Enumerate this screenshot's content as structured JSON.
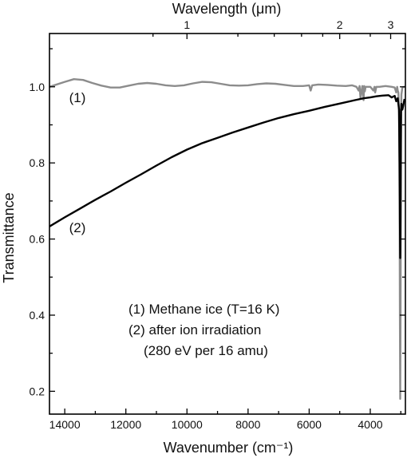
{
  "chart_data": {
    "type": "line",
    "title": "",
    "xlabel": "Wavenumber (cm⁻¹)",
    "ylabel": "Transmittance",
    "x2label": "Wavelength (μm)",
    "xlim": [
      14500,
      2850
    ],
    "ylim": [
      0.14,
      1.14
    ],
    "x_reversed": true,
    "x_ticks": [
      14000,
      12000,
      10000,
      8000,
      6000,
      4000
    ],
    "x_minor_ticks": [
      13000,
      11000,
      9000,
      7000,
      5000,
      3000
    ],
    "y_ticks": [
      0.2,
      0.4,
      0.6,
      0.8,
      1.0
    ],
    "y_tick_labels": [
      "0.2",
      "0.4",
      "0.6",
      "0.8",
      "1.0"
    ],
    "y_minor_ticks": [
      0.3,
      0.5,
      0.7,
      0.9,
      1.1
    ],
    "top_axis_ticks": [
      {
        "label": "1",
        "wavenumber": 10000
      },
      {
        "label": "2",
        "wavenumber": 5000
      },
      {
        "label": "3",
        "wavenumber": 3333
      }
    ],
    "top_axis_minor_ticks": [
      11111,
      8333,
      7143,
      6250,
      5556,
      4000
    ],
    "grid": false,
    "series": [
      {
        "name": "(1)",
        "color": "#8c8c8c",
        "x": [
          14500,
          14000,
          13700,
          13400,
          13100,
          12800,
          12500,
          12200,
          11900,
          11600,
          11300,
          11000,
          10700,
          10400,
          10100,
          9800,
          9500,
          9200,
          8900,
          8600,
          8300,
          8000,
          7700,
          7400,
          7100,
          6800,
          6500,
          6200,
          6000,
          5950,
          5900,
          5700,
          5400,
          5100,
          4800,
          4600,
          4450,
          4380,
          4350,
          4320,
          4260,
          4220,
          4200,
          4180,
          4150,
          4000,
          3900,
          3860,
          3840,
          3800,
          3700,
          3500,
          3300,
          3200,
          3150,
          3120,
          3100,
          3080,
          3060,
          3040,
          3030,
          3020,
          3010,
          3000,
          2990,
          2980,
          2950,
          2900,
          2870
        ],
        "y": [
          1.0,
          1.013,
          1.02,
          1.018,
          1.01,
          1.003,
          0.998,
          0.998,
          1.003,
          1.008,
          1.01,
          1.008,
          1.004,
          1.002,
          1.004,
          1.009,
          1.013,
          1.012,
          1.008,
          1.004,
          1.003,
          1.004,
          1.007,
          1.009,
          1.008,
          1.005,
          1.002,
          1.002,
          1.004,
          0.99,
          1.004,
          1.006,
          1.005,
          1.003,
          1.002,
          1.004,
          1.0,
          0.99,
          1.002,
          0.97,
          1.002,
          0.965,
          1.002,
          0.988,
          1.0,
          1.0,
          0.99,
          1.0,
          0.985,
          1.0,
          1.0,
          1.002,
          1.0,
          0.998,
          0.985,
          1.0,
          0.99,
          0.985,
          0.93,
          0.7,
          0.4,
          0.18,
          0.4,
          0.7,
          0.93,
          0.98,
          0.998,
          1.0,
          1.0
        ]
      },
      {
        "name": "(2)",
        "color": "#000000",
        "x": [
          14500,
          14000,
          13500,
          13000,
          12500,
          12000,
          11500,
          11000,
          10500,
          10000,
          9500,
          9000,
          8500,
          8000,
          7500,
          7000,
          6500,
          6000,
          5500,
          5000,
          4500,
          4200,
          4000,
          3800,
          3600,
          3400,
          3300,
          3200,
          3150,
          3100,
          3060,
          3040,
          3030,
          3020,
          3010,
          3000,
          2990,
          2980,
          2950,
          2920,
          2900,
          2880
        ],
        "y": [
          0.633,
          0.657,
          0.68,
          0.703,
          0.725,
          0.748,
          0.77,
          0.793,
          0.815,
          0.835,
          0.852,
          0.866,
          0.88,
          0.893,
          0.906,
          0.918,
          0.928,
          0.937,
          0.947,
          0.956,
          0.965,
          0.97,
          0.972,
          0.975,
          0.977,
          0.978,
          0.972,
          0.976,
          0.962,
          0.97,
          0.94,
          0.8,
          0.65,
          0.55,
          0.66,
          0.85,
          0.94,
          0.955,
          0.94,
          0.95,
          0.96,
          0.968
        ]
      }
    ],
    "annotations": [
      {
        "text": "(1)",
        "x": 13400,
        "y": 0.955
      },
      {
        "text": "(2)",
        "x": 13400,
        "y": 0.6
      }
    ],
    "legend": {
      "placement": "bottom-center",
      "lines": [
        "(1) Methane ice (T=16 K)",
        "(2) after ion irradiation",
        "(280 eV per 16 amu)"
      ]
    }
  }
}
